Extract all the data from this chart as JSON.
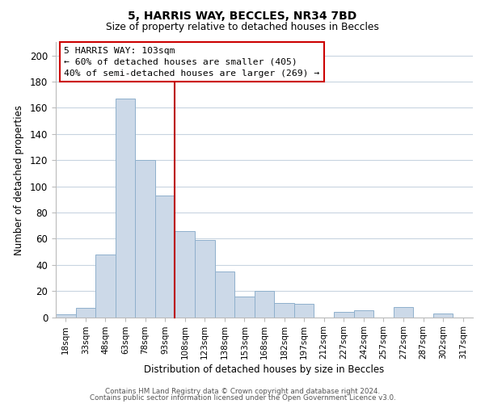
{
  "title1": "5, HARRIS WAY, BECCLES, NR34 7BD",
  "title2": "Size of property relative to detached houses in Beccles",
  "xlabel": "Distribution of detached houses by size in Beccles",
  "ylabel": "Number of detached properties",
  "bar_color": "#ccd9e8",
  "bar_edge_color": "#8fb0cc",
  "categories": [
    "18sqm",
    "33sqm",
    "48sqm",
    "63sqm",
    "78sqm",
    "93sqm",
    "108sqm",
    "123sqm",
    "138sqm",
    "153sqm",
    "168sqm",
    "182sqm",
    "197sqm",
    "212sqm",
    "227sqm",
    "242sqm",
    "257sqm",
    "272sqm",
    "287sqm",
    "302sqm",
    "317sqm"
  ],
  "values": [
    2,
    7,
    48,
    167,
    120,
    93,
    66,
    59,
    35,
    16,
    20,
    11,
    10,
    0,
    4,
    5,
    0,
    8,
    0,
    3,
    0
  ],
  "ylim": [
    0,
    210
  ],
  "yticks": [
    0,
    20,
    40,
    60,
    80,
    100,
    120,
    140,
    160,
    180,
    200
  ],
  "vline_index": 6,
  "vline_color": "#bb0000",
  "annotation_title": "5 HARRIS WAY: 103sqm",
  "annotation_line1": "← 60% of detached houses are smaller (405)",
  "annotation_line2": "40% of semi-detached houses are larger (269) →",
  "annotation_box_color": "#ffffff",
  "annotation_box_edge": "#cc0000",
  "footer1": "Contains HM Land Registry data © Crown copyright and database right 2024.",
  "footer2": "Contains public sector information licensed under the Open Government Licence v3.0.",
  "background_color": "#ffffff",
  "grid_color": "#c8d4e0"
}
